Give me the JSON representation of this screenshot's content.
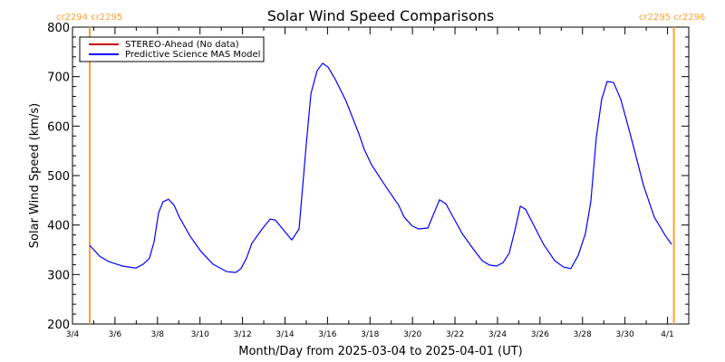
{
  "chart_data": {
    "type": "line",
    "title": "Solar Wind Speed Comparisons",
    "xlabel": "Month/Day from 2025-03-04 to 2025-04-01 (UT)",
    "ylabel": "Solar Wind Speed (km/s)",
    "xlim_days_from_start": [
      0,
      29
    ],
    "ylim": [
      200,
      800
    ],
    "yticks": [
      200,
      300,
      400,
      500,
      600,
      700,
      800
    ],
    "xtick_labels": [
      "3/4",
      "3/6",
      "3/8",
      "3/10",
      "3/12",
      "3/14",
      "3/16",
      "3/18",
      "3/20",
      "3/22",
      "3/24",
      "3/26",
      "3/28",
      "3/30",
      "4/1"
    ],
    "legend": [
      {
        "label": "STEREO-Ahead (No data)",
        "color": "#cc0000"
      },
      {
        "label": "Predictive Science MAS Model",
        "color": "#0000ff"
      }
    ],
    "legend_placement": "top-left",
    "carrington_markers": [
      {
        "day": 0.81,
        "label": "cr2294 cr2295"
      },
      {
        "day": 28.3,
        "label": "cr2295 cr2296"
      }
    ],
    "marker_color": "#ffa030",
    "series": [
      {
        "name": "Predictive Science MAS Model",
        "color": "#0000ff",
        "x": [
          0.81,
          1.28,
          1.71,
          2.35,
          2.99,
          3.33,
          3.62,
          3.84,
          4.05,
          4.26,
          4.52,
          4.78,
          5.03,
          5.54,
          6.06,
          6.61,
          7.25,
          7.68,
          7.93,
          8.19,
          8.44,
          8.96,
          9.3,
          9.55,
          9.89,
          10.32,
          10.66,
          11.0,
          11.22,
          11.51,
          11.77,
          12.03,
          12.37,
          12.88,
          13.48,
          13.73,
          14.07,
          14.71,
          15.35,
          15.61,
          15.99,
          16.29,
          16.72,
          17.06,
          17.27,
          17.57,
          17.91,
          18.34,
          18.85,
          19.28,
          19.62,
          19.96,
          20.26,
          20.55,
          20.81,
          21.07,
          21.32,
          21.75,
          22.17,
          22.69,
          23.11,
          23.45,
          23.8,
          24.14,
          24.39,
          24.65,
          24.9,
          25.16,
          25.46,
          25.8,
          26.27,
          26.87,
          27.38,
          27.89,
          28.19
        ],
        "y": [
          359,
          337,
          326,
          317,
          313,
          321,
          333,
          366,
          425,
          447,
          452,
          440,
          416,
          377,
          346,
          321,
          306,
          304,
          312,
          333,
          363,
          394,
          412,
          410,
          392,
          370,
          392,
          562,
          666,
          712,
          727,
          719,
          694,
          650,
          584,
          553,
          522,
          480,
          440,
          416,
          398,
          392,
          394,
          429,
          451,
          443,
          416,
          383,
          352,
          328,
          319,
          317,
          324,
          343,
          388,
          438,
          432,
          396,
          361,
          328,
          315,
          312,
          339,
          383,
          447,
          577,
          654,
          690,
          688,
          654,
          580,
          480,
          416,
          379,
          361
        ]
      }
    ]
  }
}
